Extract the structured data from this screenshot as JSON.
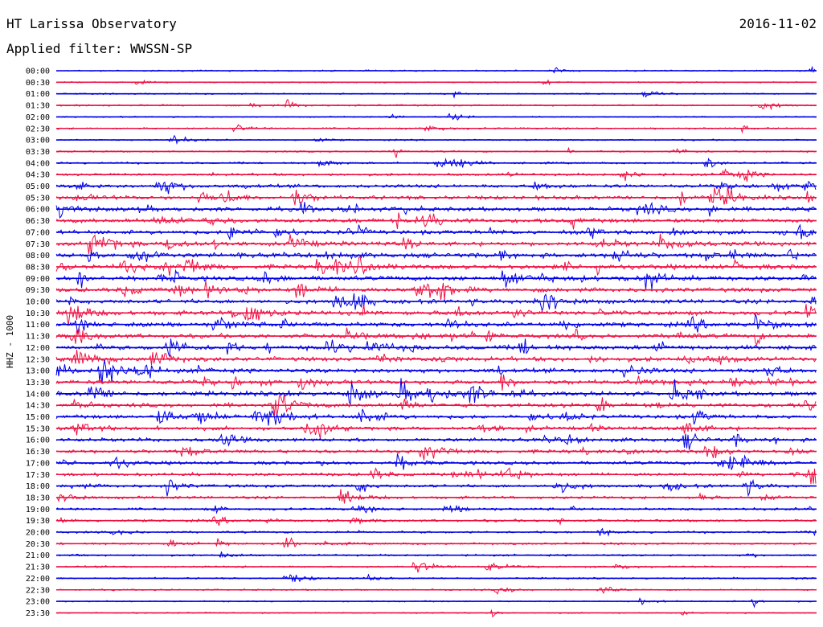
{
  "header": {
    "station": "HT Larissa Observatory",
    "date": "2016-11-02",
    "filter": "Applied filter: WWSSN-SP"
  },
  "chart_data": {
    "type": "line",
    "channel_label": "HHZ - 1000",
    "row_labels": [
      "00:00",
      "00:30",
      "01:00",
      "01:30",
      "02:00",
      "02:30",
      "03:00",
      "03:30",
      "04:00",
      "04:30",
      "05:00",
      "05:30",
      "06:00",
      "06:30",
      "07:00",
      "07:30",
      "08:00",
      "08:30",
      "09:00",
      "09:30",
      "10:00",
      "10:30",
      "11:00",
      "11:30",
      "12:00",
      "12:30",
      "13:00",
      "13:30",
      "14:00",
      "14:30",
      "15:00",
      "15:30",
      "16:00",
      "16:30",
      "17:00",
      "17:30",
      "18:00",
      "18:30",
      "19:00",
      "19:30",
      "20:00",
      "20:30",
      "21:00",
      "21:30",
      "22:00",
      "22:30",
      "23:00",
      "23:30"
    ],
    "activity": [
      0.08,
      0.06,
      0.07,
      0.12,
      0.05,
      0.14,
      0.09,
      0.12,
      0.18,
      0.28,
      0.45,
      0.55,
      0.6,
      0.6,
      0.58,
      0.62,
      0.7,
      0.7,
      0.68,
      0.62,
      0.6,
      0.66,
      0.66,
      0.62,
      0.66,
      0.62,
      0.64,
      0.62,
      0.66,
      0.58,
      0.52,
      0.5,
      0.52,
      0.48,
      0.46,
      0.42,
      0.38,
      0.32,
      0.3,
      0.28,
      0.22,
      0.22,
      0.18,
      0.16,
      0.12,
      0.1,
      0.08,
      0.06
    ],
    "series_colors": [
      "#0000e6",
      "#ee1144"
    ]
  }
}
